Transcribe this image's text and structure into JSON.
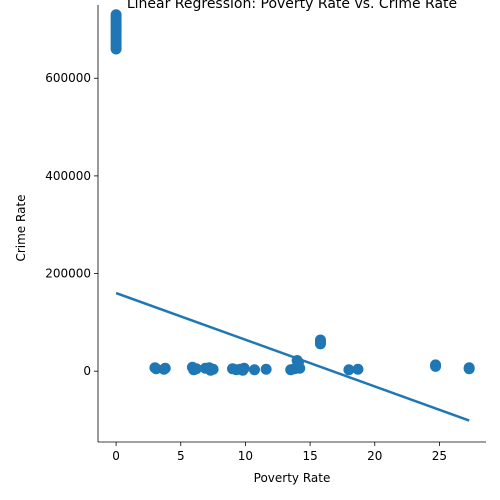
{
  "chart_data": {
    "type": "scatter",
    "title": "Linear Regression: Poverty Rate vs. Crime Rate",
    "xlabel": "Poverty Rate",
    "ylabel": "Crime Rate",
    "xlim": [
      -1.4,
      28.6
    ],
    "ylim": [
      -145000,
      750000
    ],
    "xticks": [
      0,
      5,
      10,
      15,
      20,
      25
    ],
    "xtick_labels": [
      "0",
      "5",
      "10",
      "15",
      "20",
      "25"
    ],
    "yticks": [
      0,
      200000,
      400000,
      600000
    ],
    "ytick_labels": [
      "0",
      "200000",
      "400000",
      "600000"
    ],
    "grid": false,
    "legend": "none",
    "point_color": "#1f77b4",
    "line_color": "#1f77b4",
    "points": [
      {
        "x": 0,
        "y": 730000
      },
      {
        "x": 0,
        "y": 725000
      },
      {
        "x": 0,
        "y": 720000
      },
      {
        "x": 0,
        "y": 715000
      },
      {
        "x": 0,
        "y": 710000
      },
      {
        "x": 0,
        "y": 705000
      },
      {
        "x": 0,
        "y": 700000
      },
      {
        "x": 0,
        "y": 695000
      },
      {
        "x": 0,
        "y": 690000
      },
      {
        "x": 0,
        "y": 685000
      },
      {
        "x": 0,
        "y": 680000
      },
      {
        "x": 0,
        "y": 675000
      },
      {
        "x": 0,
        "y": 670000
      },
      {
        "x": 0,
        "y": 665000
      },
      {
        "x": 0,
        "y": 660000
      },
      {
        "x": 3.0,
        "y": 7000
      },
      {
        "x": 3.1,
        "y": 5000
      },
      {
        "x": 3.8,
        "y": 6000
      },
      {
        "x": 3.7,
        "y": 4000
      },
      {
        "x": 5.9,
        "y": 8000
      },
      {
        "x": 6.0,
        "y": 3000
      },
      {
        "x": 6.2,
        "y": 5000
      },
      {
        "x": 6.9,
        "y": 6000
      },
      {
        "x": 7.2,
        "y": 7000
      },
      {
        "x": 7.5,
        "y": 4000
      },
      {
        "x": 7.3,
        "y": 2000
      },
      {
        "x": 9.0,
        "y": 5000
      },
      {
        "x": 9.3,
        "y": 3000
      },
      {
        "x": 9.6,
        "y": 4000
      },
      {
        "x": 9.9,
        "y": 6000
      },
      {
        "x": 9.8,
        "y": 2000
      },
      {
        "x": 10.7,
        "y": 3000
      },
      {
        "x": 11.6,
        "y": 4000
      },
      {
        "x": 13.5,
        "y": 3000
      },
      {
        "x": 13.8,
        "y": 5000
      },
      {
        "x": 14.0,
        "y": 22000
      },
      {
        "x": 14.1,
        "y": 18000
      },
      {
        "x": 14.2,
        "y": 6000
      },
      {
        "x": 15.8,
        "y": 64000
      },
      {
        "x": 15.8,
        "y": 60000
      },
      {
        "x": 15.8,
        "y": 56000
      },
      {
        "x": 18.0,
        "y": 3000
      },
      {
        "x": 18.7,
        "y": 4000
      },
      {
        "x": 24.7,
        "y": 13000
      },
      {
        "x": 24.7,
        "y": 10000
      },
      {
        "x": 27.3,
        "y": 7000
      },
      {
        "x": 27.3,
        "y": 5000
      }
    ],
    "regression_line": {
      "x": [
        0,
        27.3
      ],
      "y": [
        160000,
        -101000
      ]
    }
  }
}
